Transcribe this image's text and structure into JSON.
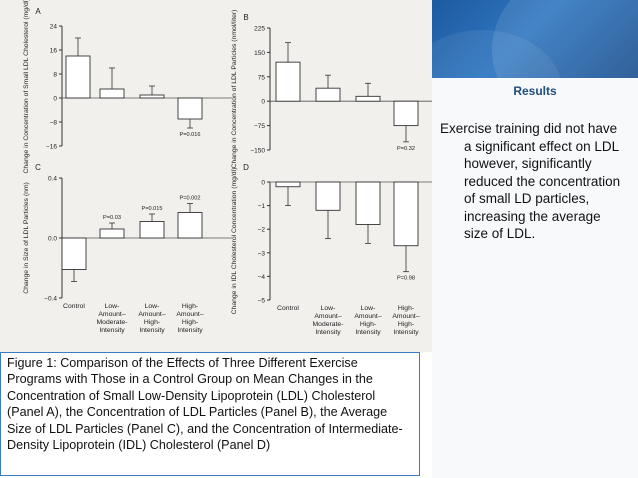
{
  "results": {
    "title": "Results",
    "text": "Exercise training did not have a significant effect on LDL however, significantly reduced the concentration of small LD particles, increasing the average size of LDL."
  },
  "caption": "Figure 1: Comparison of the Effects of Three Different Exercise Programs with Those in a Control Group on Mean Changes in the Concentration of Small Low-Density Lipoprotein (LDL) Cholesterol (Panel A), the Concentration of LDL Particles (Panel B), the Average Size of LDL Particles (Panel C), and the Concentration of Intermediate-Density Lipoprotein (IDL) Cholesterol (Panel D)",
  "colors": {
    "accent": "#1f4e79",
    "caption_border": "#3a7cc4",
    "bar_fill": "#ffffff"
  },
  "chart_data": [
    {
      "panel": "A",
      "type": "bar",
      "ylabel": "Change in Concentration of Small LDL Cholesterol (mg/dl)",
      "ylim": [
        -16,
        24
      ],
      "yticks": [
        "24",
        "16",
        "8",
        "0",
        "−8",
        "−16"
      ],
      "tickvals": [
        24,
        16,
        8,
        0,
        -8,
        -16
      ],
      "values": [
        14,
        3,
        1,
        -7
      ],
      "errors": [
        6,
        7,
        3,
        3
      ],
      "annotations": [
        "",
        "",
        "",
        "P=0.016"
      ]
    },
    {
      "panel": "B",
      "type": "bar",
      "ylabel": "Change in Concentration of LDL Particles (nmol/liter)",
      "ylim": [
        -150,
        225
      ],
      "yticks": [
        "225",
        "150",
        "75",
        "0",
        "−75",
        "−150"
      ],
      "tickvals": [
        225,
        150,
        75,
        0,
        -75,
        -150
      ],
      "values": [
        120,
        40,
        15,
        -75
      ],
      "errors": [
        60,
        40,
        40,
        50
      ],
      "annotations": [
        "",
        "",
        "",
        "P=0.32"
      ]
    },
    {
      "panel": "C",
      "type": "bar",
      "ylabel": "Change in Size of LDL Particles (nm)",
      "ylim": [
        -0.4,
        0.4
      ],
      "yticks": [
        "0.4",
        "0.0",
        "−0.4"
      ],
      "tickvals": [
        0.4,
        0.0,
        -0.4
      ],
      "values": [
        -0.21,
        0.06,
        0.11,
        0.17
      ],
      "errors": [
        0.08,
        0.04,
        0.05,
        0.06
      ],
      "annotations": [
        "",
        "P=0.03",
        "P=0.015",
        "P=0.002"
      ],
      "categories": [
        "Control",
        "Low-Amount–Moderate-Intensity",
        "Low-Amount–High-Intensity",
        "High-Amount–High-Intensity"
      ]
    },
    {
      "panel": "D",
      "type": "bar",
      "ylabel": "Change in IDL Cholesterol Concentration (mg/dl)",
      "ylim": [
        -5,
        0
      ],
      "yticks": [
        "0",
        "−1",
        "−2",
        "−3",
        "−4",
        "−5"
      ],
      "tickvals": [
        0,
        -1,
        -2,
        -3,
        -4,
        -5
      ],
      "values": [
        -0.2,
        -1.2,
        -1.8,
        -2.7
      ],
      "errors": [
        0.8,
        1.2,
        0.8,
        1.1
      ],
      "annotations": [
        "",
        "",
        "",
        "P=0.98"
      ],
      "categories": [
        "Control",
        "Low-Amount–Moderate-Intensity",
        "Low-Amount–High-Intensity",
        "High-Amount–High-Intensity"
      ]
    }
  ]
}
